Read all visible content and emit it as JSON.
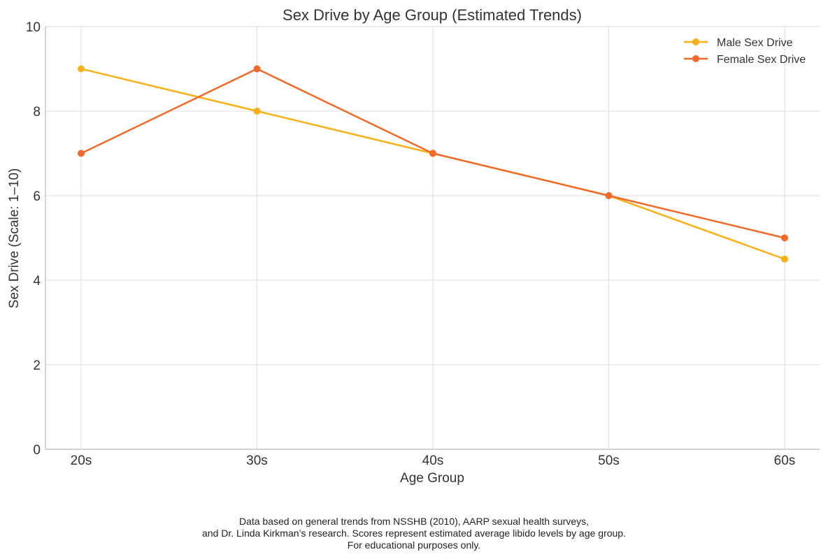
{
  "chart_data": {
    "type": "line",
    "title": "Sex Drive by Age Group (Estimated Trends)",
    "xlabel": "Age Group",
    "ylabel": "Sex Drive (Scale: 1–10)",
    "categories": [
      "20s",
      "30s",
      "40s",
      "50s",
      "60s"
    ],
    "yticks": [
      0,
      2,
      4,
      6,
      8,
      10
    ],
    "ylim": [
      0,
      10
    ],
    "grid": true,
    "legend_position": "top-right",
    "series": [
      {
        "name": "Male Sex Drive",
        "values": [
          9,
          8,
          7,
          6,
          4.5
        ],
        "color": "#F7B018"
      },
      {
        "name": "Female Sex Drive",
        "values": [
          7,
          9,
          7,
          6,
          5
        ],
        "color": "#EE6A2A"
      }
    ]
  },
  "footnote": {
    "lines": [
      "Data based on general trends from NSSHB (2010), AARP sexual health surveys,",
      "and Dr. Linda Kirkman’s research. Scores represent estimated average libido levels by age group.",
      "For educational purposes only."
    ]
  }
}
